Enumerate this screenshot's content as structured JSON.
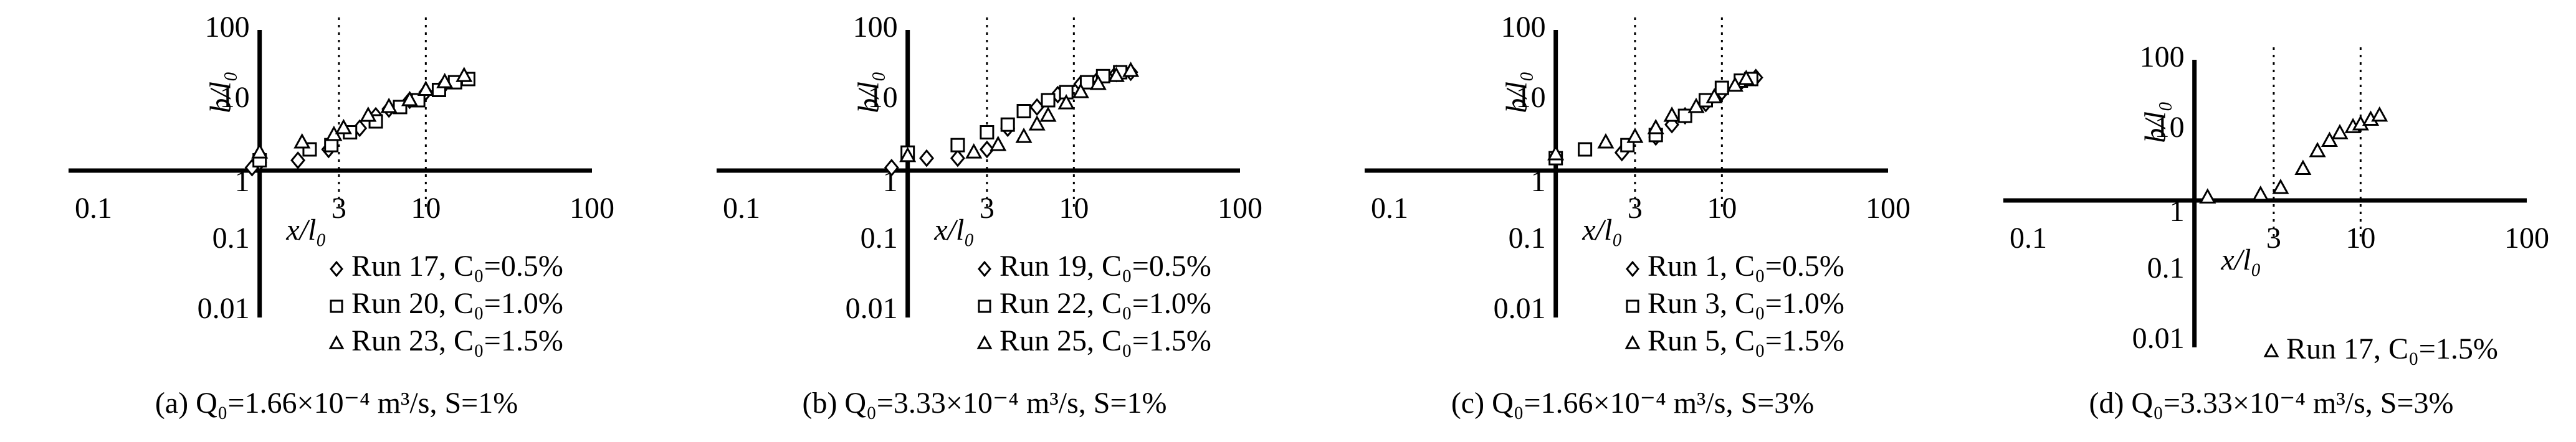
{
  "chart_data": [
    {
      "type": "scatter",
      "caption": "(a) Q₀=1.66×10⁻⁴ m³/s, S=1%",
      "xlabel": "x/l₀",
      "ylabel": "b/l₀",
      "xlog": true,
      "ylog": true,
      "xlim": [
        0.1,
        100
      ],
      "ylim": [
        0.01,
        100
      ],
      "xticks": [
        0.1,
        3,
        10,
        100
      ],
      "yticks": [
        0.01,
        0.1,
        1,
        10,
        100
      ],
      "vlines": [
        3,
        10
      ],
      "series": [
        {
          "name": "Run 17, C₀=0.5%",
          "marker": "diamond",
          "color": "#000000",
          "x": [
            0.9,
            1.0,
            1.7,
            2.6,
            4,
            5,
            6,
            8,
            10,
            13
          ],
          "y": [
            1.1,
            1.3,
            1.4,
            2.0,
            4,
            6,
            7.5,
            10,
            13,
            17
          ]
        },
        {
          "name": "Run 20, C₀=1.0%",
          "marker": "square",
          "color": "#000000",
          "x": [
            1,
            2,
            2.7,
            3.5,
            5,
            7,
            9,
            12,
            15,
            18
          ],
          "y": [
            1.4,
            2,
            2.3,
            3.5,
            5,
            8,
            10,
            14,
            18,
            20
          ]
        },
        {
          "name": "Run 23, C₀=1.5%",
          "marker": "triangle",
          "color": "#000000",
          "x": [
            1,
            1.8,
            2.8,
            3.2,
            4.5,
            6,
            8,
            10,
            13,
            17
          ],
          "y": [
            1.8,
            2.5,
            3.2,
            4,
            6,
            8,
            10,
            14,
            18,
            22
          ]
        }
      ]
    },
    {
      "type": "scatter",
      "caption": "(b) Q₀=3.33×10⁻⁴ m³/s, S=1%",
      "xlabel": "x/l₀",
      "ylabel": "b/l₀",
      "xlog": true,
      "ylog": true,
      "xlim": [
        0.1,
        100
      ],
      "ylim": [
        0.01,
        100
      ],
      "xticks": [
        0.1,
        3,
        10,
        100
      ],
      "yticks": [
        0.01,
        0.1,
        1,
        10,
        100
      ],
      "vlines": [
        3,
        10
      ],
      "series": [
        {
          "name": "Run 19, C₀=0.5%",
          "marker": "diamond",
          "color": "#000000",
          "x": [
            0.8,
            1.3,
            2,
            3,
            4,
            6,
            8,
            11,
            14,
            18,
            22
          ],
          "y": [
            1.1,
            1.5,
            1.5,
            2,
            4,
            8,
            12,
            17,
            20,
            24,
            25
          ]
        },
        {
          "name": "Run 22, C₀=1.0%",
          "marker": "square",
          "color": "#000000",
          "x": [
            1,
            2,
            3,
            4,
            5,
            7,
            9,
            12,
            15,
            19
          ],
          "y": [
            1.8,
            2.3,
            3.5,
            4.5,
            7,
            10,
            13,
            18,
            22,
            25
          ]
        },
        {
          "name": "Run 25, C₀=1.5%",
          "marker": "triangle",
          "color": "#000000",
          "x": [
            1,
            2.5,
            3.5,
            5,
            6,
            7,
            9,
            11,
            14,
            18,
            22
          ],
          "y": [
            1.6,
            1.8,
            2.3,
            3,
            4.5,
            6,
            9,
            13,
            17,
            22,
            26
          ]
        }
      ]
    },
    {
      "type": "scatter",
      "caption": "(c) Q₀=1.66×10⁻⁴ m³/s, S=3%",
      "xlabel": "x/l₀",
      "ylabel": "b/l₀",
      "xlog": true,
      "ylog": true,
      "xlim": [
        0.1,
        100
      ],
      "ylim": [
        0.01,
        100
      ],
      "xticks": [
        0.1,
        3,
        10,
        100
      ],
      "yticks": [
        0.01,
        0.1,
        1,
        10,
        100
      ],
      "vlines": [
        3,
        10
      ],
      "series": [
        {
          "name": "Run 1, C₀=0.5%",
          "marker": "diamond",
          "color": "#000000",
          "x": [
            2.5,
            4,
            5,
            6,
            8,
            10,
            13,
            16
          ],
          "y": [
            1.8,
            3,
            4.5,
            6,
            9,
            13,
            18,
            21
          ]
        },
        {
          "name": "Run 3, C₀=1.0%",
          "marker": "square",
          "color": "#000000",
          "x": [
            1,
            1.5,
            2.7,
            4,
            6,
            8,
            10,
            13,
            15
          ],
          "y": [
            1.5,
            2,
            2.3,
            3.2,
            6,
            10,
            15,
            19,
            20
          ]
        },
        {
          "name": "Run 5, C₀=1.5%",
          "marker": "triangle",
          "color": "#000000",
          "x": [
            1,
            2,
            3,
            4,
            5,
            7,
            9,
            12,
            14
          ],
          "y": [
            1.7,
            2.5,
            3,
            4,
            6,
            8,
            11,
            16,
            20
          ]
        }
      ]
    },
    {
      "type": "scatter",
      "caption": "(d) Q₀=3.33×10⁻⁴ m³/s, S=3%",
      "xlabel": "x/l₀",
      "ylabel": "b/l₀",
      "xlog": true,
      "ylog": true,
      "xlim": [
        0.1,
        100
      ],
      "ylim": [
        0.01,
        100
      ],
      "xticks": [
        0.1,
        3,
        10,
        100
      ],
      "yticks": [
        0.01,
        0.1,
        1,
        10,
        100
      ],
      "vlines": [
        3,
        10
      ],
      "series": [
        {
          "name": "Run 17, C₀=1.5%",
          "marker": "triangle",
          "color": "#000000",
          "x": [
            1.2,
            2.5,
            3.3,
            4.5,
            5.5,
            6.5,
            7.5,
            9,
            10,
            11.5,
            13
          ],
          "y": [
            1.1,
            1.2,
            1.5,
            2.8,
            5,
            7,
            9,
            11,
            12,
            14,
            16
          ]
        }
      ]
    }
  ]
}
